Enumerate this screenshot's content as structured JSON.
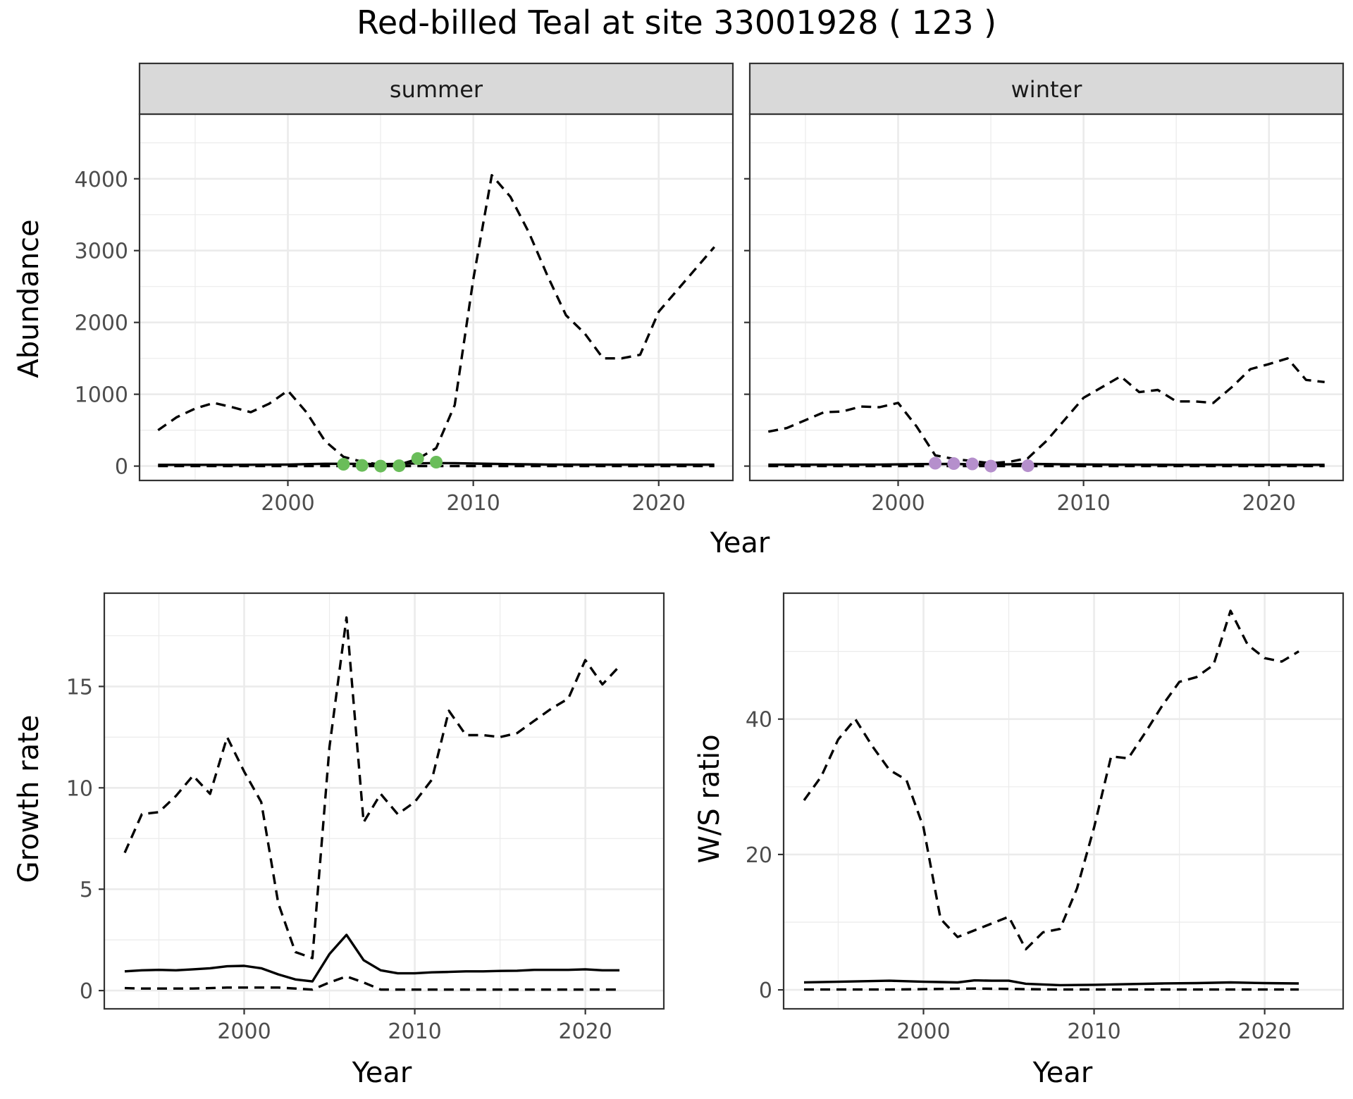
{
  "title": "Red-billed Teal at site 33001928 ( 123 )",
  "colors": {
    "summer_points": "#6abd5a",
    "winter_points": "#b58fcc",
    "lines": "#000000",
    "strip_fill": "#d9d9d9",
    "grid": "#ebebeb"
  },
  "chart_data": [
    {
      "type": "line",
      "panel": "summer",
      "strip_label": "summer",
      "xlabel": "Year",
      "ylabel": "Abundance",
      "xlim": [
        1992,
        2024
      ],
      "ylim": [
        -200,
        4900
      ],
      "x_ticks": [
        2000,
        2010,
        2020
      ],
      "y_ticks": [
        0,
        1000,
        2000,
        3000,
        4000
      ],
      "grid": true,
      "series": [
        {
          "role": "upper",
          "style": "dashed",
          "x": [
            1993,
            1994,
            1995,
            1996,
            1997,
            1998,
            1999,
            2000,
            2001,
            2002,
            2003,
            2004,
            2005,
            2006,
            2007,
            2008,
            2009,
            2010,
            2011,
            2012,
            2013,
            2014,
            2015,
            2016,
            2017,
            2018,
            2019,
            2020,
            2021,
            2022,
            2023
          ],
          "values": [
            500,
            680,
            800,
            880,
            820,
            750,
            870,
            1050,
            750,
            350,
            130,
            60,
            20,
            20,
            100,
            250,
            850,
            2600,
            4050,
            3750,
            3250,
            2650,
            2100,
            1850,
            1500,
            1500,
            1550,
            2150,
            2450,
            2750,
            3050
          ]
        },
        {
          "role": "central",
          "style": "solid",
          "x": [
            1993,
            1995,
            1997,
            1999,
            2000,
            2001,
            2002,
            2003,
            2004,
            2005,
            2006,
            2007,
            2008,
            2009,
            2010,
            2012,
            2014,
            2016,
            2018,
            2020,
            2023
          ],
          "values": [
            18,
            18,
            18,
            20,
            22,
            28,
            32,
            32,
            30,
            28,
            30,
            38,
            42,
            40,
            35,
            28,
            22,
            20,
            20,
            20,
            20
          ]
        },
        {
          "role": "lower",
          "style": "dashed",
          "x": [
            1993,
            2000,
            2005,
            2010,
            2015,
            2020,
            2023
          ],
          "values": [
            0,
            0,
            0,
            0,
            0,
            0,
            0
          ]
        },
        {
          "role": "observed",
          "style": "points",
          "x": [
            2003,
            2004,
            2005,
            2006,
            2007,
            2008
          ],
          "values": [
            25,
            10,
            0,
            5,
            105,
            55
          ]
        }
      ]
    },
    {
      "type": "line",
      "panel": "winter",
      "strip_label": "winter",
      "xlabel": "Year",
      "ylabel": "",
      "xlim": [
        1992,
        2024
      ],
      "ylim": [
        -200,
        4900
      ],
      "x_ticks": [
        2000,
        2010,
        2020
      ],
      "y_ticks": [
        0,
        1000,
        2000,
        3000,
        4000
      ],
      "grid": true,
      "series": [
        {
          "role": "upper",
          "style": "dashed",
          "x": [
            1993,
            1994,
            1995,
            1996,
            1997,
            1998,
            1999,
            2000,
            2001,
            2002,
            2003,
            2004,
            2005,
            2006,
            2007,
            2008,
            2009,
            2010,
            2011,
            2012,
            2013,
            2014,
            2015,
            2016,
            2017,
            2018,
            2019,
            2020,
            2021,
            2022,
            2023
          ],
          "values": [
            480,
            530,
            640,
            750,
            760,
            830,
            820,
            880,
            550,
            150,
            100,
            70,
            40,
            60,
            110,
            350,
            650,
            950,
            1100,
            1250,
            1030,
            1060,
            900,
            900,
            880,
            1100,
            1350,
            1420,
            1500,
            1200,
            1170
          ]
        },
        {
          "role": "central",
          "style": "solid",
          "x": [
            1993,
            1996,
            1999,
            2001,
            2003,
            2005,
            2007,
            2009,
            2012,
            2015,
            2018,
            2021,
            2023
          ],
          "values": [
            20,
            20,
            22,
            28,
            30,
            20,
            30,
            25,
            20,
            18,
            18,
            18,
            18
          ]
        },
        {
          "role": "lower",
          "style": "dashed",
          "x": [
            1993,
            2000,
            2005,
            2010,
            2015,
            2020,
            2023
          ],
          "values": [
            0,
            0,
            0,
            0,
            0,
            0,
            0
          ]
        },
        {
          "role": "observed",
          "style": "points",
          "x": [
            2002,
            2003,
            2004,
            2005,
            2007
          ],
          "values": [
            40,
            35,
            30,
            0,
            5
          ]
        }
      ]
    },
    {
      "type": "line",
      "panel": "growth",
      "xlabel": "Year",
      "ylabel": "Growth rate",
      "xlim": [
        1991.8,
        2024.6
      ],
      "ylim": [
        -0.9,
        19.6
      ],
      "x_ticks": [
        2000,
        2010,
        2020
      ],
      "y_ticks": [
        0,
        5,
        10,
        15
      ],
      "grid": true,
      "series": [
        {
          "role": "upper",
          "style": "dashed",
          "x": [
            1993,
            1994,
            1995,
            1996,
            1997,
            1998,
            1999,
            2000,
            2001,
            2002,
            2003,
            2004,
            2005,
            2006,
            2007,
            2008,
            2009,
            2010,
            2011,
            2012,
            2013,
            2014,
            2015,
            2016,
            2017,
            2018,
            2019,
            2020,
            2021,
            2022
          ],
          "values": [
            6.8,
            8.7,
            8.8,
            9.6,
            10.6,
            9.7,
            12.5,
            10.8,
            9.3,
            4.3,
            1.9,
            1.6,
            12.0,
            18.4,
            8.3,
            9.7,
            8.7,
            9.3,
            10.4,
            13.8,
            12.6,
            12.6,
            12.5,
            12.7,
            13.3,
            13.9,
            14.4,
            16.3,
            15.1,
            16.0
          ]
        },
        {
          "role": "central",
          "style": "solid",
          "x": [
            1993,
            1994,
            1995,
            1996,
            1997,
            1998,
            1999,
            2000,
            2001,
            2002,
            2003,
            2004,
            2005,
            2006,
            2007,
            2008,
            2009,
            2010,
            2011,
            2012,
            2013,
            2014,
            2015,
            2016,
            2017,
            2018,
            2019,
            2020,
            2021,
            2022
          ],
          "values": [
            0.95,
            1.0,
            1.02,
            1.0,
            1.05,
            1.1,
            1.2,
            1.22,
            1.1,
            0.8,
            0.55,
            0.45,
            1.8,
            2.75,
            1.5,
            1.0,
            0.85,
            0.85,
            0.9,
            0.92,
            0.95,
            0.95,
            0.97,
            0.98,
            1.02,
            1.02,
            1.02,
            1.05,
            1.0,
            1.0
          ]
        },
        {
          "role": "lower",
          "style": "dashed",
          "x": [
            1993,
            1994,
            1995,
            1996,
            1997,
            1998,
            1999,
            2000,
            2001,
            2002,
            2003,
            2004,
            2005,
            2006,
            2007,
            2008,
            2009,
            2010,
            2011,
            2012,
            2013,
            2014,
            2015,
            2016,
            2017,
            2018,
            2019,
            2020,
            2021,
            2022
          ],
          "values": [
            0.12,
            0.1,
            0.1,
            0.1,
            0.1,
            0.12,
            0.15,
            0.15,
            0.15,
            0.15,
            0.1,
            0.05,
            0.4,
            0.7,
            0.4,
            0.05,
            0.05,
            0.05,
            0.05,
            0.05,
            0.05,
            0.05,
            0.05,
            0.05,
            0.05,
            0.05,
            0.05,
            0.05,
            0.05,
            0.05
          ]
        }
      ]
    },
    {
      "type": "line",
      "panel": "ratio",
      "xlabel": "Year",
      "ylabel": "W/S ratio",
      "xlim": [
        1991.8,
        2024.6
      ],
      "ylim": [
        -2.8,
        58.6
      ],
      "x_ticks": [
        2000,
        2010,
        2020
      ],
      "y_ticks": [
        0,
        20,
        40
      ],
      "grid": true,
      "series": [
        {
          "role": "upper",
          "style": "dashed",
          "x": [
            1993,
            1994,
            1995,
            1996,
            1997,
            1998,
            1999,
            2000,
            2001,
            2002,
            2003,
            2004,
            2005,
            2006,
            2007,
            2008,
            2009,
            2010,
            2011,
            2012,
            2013,
            2014,
            2015,
            2016,
            2017,
            2018,
            2019,
            2020,
            2021,
            2022
          ],
          "values": [
            28.0,
            31.5,
            37.0,
            40.0,
            36.0,
            32.5,
            31.0,
            24.0,
            10.5,
            7.8,
            8.8,
            9.8,
            10.8,
            6.0,
            8.5,
            9.0,
            15.0,
            24.0,
            34.5,
            34.2,
            38.0,
            42.0,
            45.5,
            46.2,
            48.0,
            56.0,
            51.0,
            49.0,
            48.5,
            50.0
          ]
        },
        {
          "role": "central",
          "style": "solid",
          "x": [
            1993,
            1995,
            1997,
            1998,
            2000,
            2001,
            2002,
            2003,
            2004,
            2005,
            2006,
            2008,
            2010,
            2012,
            2014,
            2016,
            2018,
            2020,
            2022
          ],
          "values": [
            1.1,
            1.2,
            1.3,
            1.35,
            1.2,
            1.15,
            1.1,
            1.4,
            1.35,
            1.35,
            0.9,
            0.7,
            0.75,
            0.85,
            0.95,
            1.0,
            1.1,
            1.0,
            0.95
          ]
        },
        {
          "role": "lower",
          "style": "dashed",
          "x": [
            1993,
            1998,
            2003,
            2008,
            2013,
            2018,
            2022
          ],
          "values": [
            0.05,
            0.05,
            0.2,
            0.05,
            0.05,
            0.05,
            0.05
          ]
        }
      ]
    }
  ]
}
